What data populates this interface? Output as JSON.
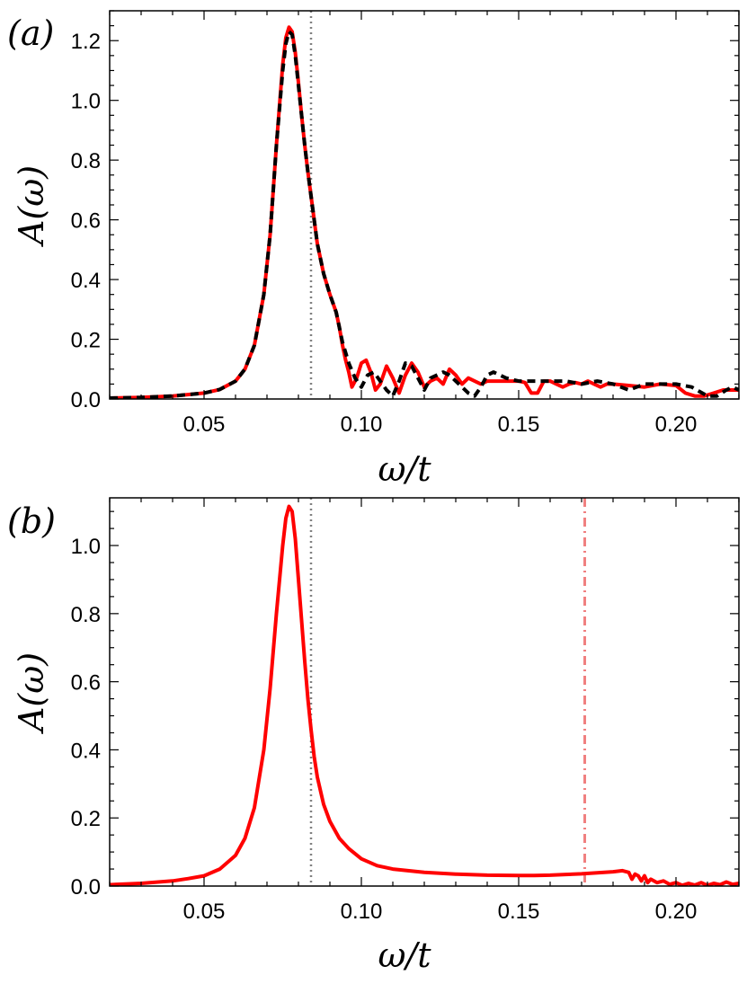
{
  "chart_data": [
    {
      "type": "line",
      "panel_label": "(a)",
      "xlabel": "ω/t",
      "ylabel": "A(ω)",
      "xlim": [
        0.02,
        0.22
      ],
      "ylim": [
        0.0,
        1.3
      ],
      "x_ticks": [
        0.05,
        0.1,
        0.15,
        0.2
      ],
      "x_tick_labels": [
        "0.05",
        "0.10",
        "0.15",
        "0.20"
      ],
      "y_ticks": [
        0.0,
        0.2,
        0.4,
        0.6,
        0.8,
        1.0,
        1.2
      ],
      "y_tick_labels": [
        "0.0",
        "0.2",
        "0.4",
        "0.6",
        "0.8",
        "1.0",
        "1.2"
      ],
      "vlines": [
        {
          "x": 0.084,
          "color": "#808080",
          "style": "dotted"
        }
      ],
      "series": [
        {
          "name": "red-solid",
          "color": "#ff0000",
          "style": "solid",
          "x": [
            0.02,
            0.03,
            0.04,
            0.05,
            0.055,
            0.06,
            0.063,
            0.066,
            0.069,
            0.071,
            0.073,
            0.075,
            0.076,
            0.077,
            0.078,
            0.079,
            0.08,
            0.081,
            0.082,
            0.083,
            0.084,
            0.085,
            0.086,
            0.088,
            0.09,
            0.092,
            0.093,
            0.094,
            0.095,
            0.096,
            0.097,
            0.0985,
            0.1,
            0.1015,
            0.103,
            0.1045,
            0.106,
            0.108,
            0.11,
            0.112,
            0.114,
            0.116,
            0.118,
            0.12,
            0.122,
            0.124,
            0.126,
            0.128,
            0.13,
            0.132,
            0.134,
            0.136,
            0.138,
            0.14,
            0.145,
            0.15,
            0.152,
            0.154,
            0.156,
            0.158,
            0.16,
            0.162,
            0.164,
            0.166,
            0.168,
            0.17,
            0.172,
            0.174,
            0.176,
            0.178,
            0.18,
            0.185,
            0.19,
            0.195,
            0.2,
            0.203,
            0.206,
            0.209,
            0.212,
            0.215,
            0.218,
            0.22
          ],
          "y": [
            0.003,
            0.005,
            0.01,
            0.02,
            0.032,
            0.06,
            0.1,
            0.18,
            0.35,
            0.55,
            0.85,
            1.12,
            1.21,
            1.245,
            1.23,
            1.16,
            1.06,
            0.95,
            0.85,
            0.76,
            0.68,
            0.6,
            0.52,
            0.42,
            0.35,
            0.29,
            0.24,
            0.18,
            0.13,
            0.09,
            0.04,
            0.07,
            0.12,
            0.13,
            0.09,
            0.03,
            0.05,
            0.11,
            0.07,
            0.02,
            0.08,
            0.12,
            0.09,
            0.04,
            0.06,
            0.07,
            0.05,
            0.1,
            0.08,
            0.05,
            0.07,
            0.06,
            0.05,
            0.06,
            0.06,
            0.06,
            0.055,
            0.02,
            0.02,
            0.06,
            0.06,
            0.05,
            0.04,
            0.05,
            0.055,
            0.05,
            0.06,
            0.05,
            0.04,
            0.05,
            0.05,
            0.045,
            0.04,
            0.05,
            0.045,
            0.02,
            0.01,
            0.01,
            0.02,
            0.03,
            0.03,
            0.03
          ]
        },
        {
          "name": "black-dashed",
          "color": "#000000",
          "style": "dashed",
          "x": [
            0.02,
            0.03,
            0.04,
            0.05,
            0.055,
            0.06,
            0.063,
            0.066,
            0.069,
            0.071,
            0.073,
            0.075,
            0.076,
            0.077,
            0.078,
            0.079,
            0.08,
            0.081,
            0.082,
            0.083,
            0.084,
            0.085,
            0.086,
            0.088,
            0.09,
            0.092,
            0.093,
            0.094,
            0.096,
            0.098,
            0.1,
            0.102,
            0.104,
            0.106,
            0.108,
            0.11,
            0.112,
            0.114,
            0.116,
            0.118,
            0.12,
            0.122,
            0.124,
            0.126,
            0.128,
            0.13,
            0.132,
            0.134,
            0.136,
            0.138,
            0.14,
            0.142,
            0.144,
            0.146,
            0.15,
            0.155,
            0.16,
            0.165,
            0.17,
            0.175,
            0.18,
            0.185,
            0.19,
            0.195,
            0.2,
            0.205,
            0.21,
            0.213,
            0.216,
            0.218,
            0.22
          ],
          "y": [
            0.003,
            0.005,
            0.01,
            0.02,
            0.032,
            0.06,
            0.1,
            0.18,
            0.35,
            0.55,
            0.85,
            1.1,
            1.19,
            1.23,
            1.22,
            1.15,
            1.05,
            0.95,
            0.85,
            0.76,
            0.68,
            0.6,
            0.52,
            0.42,
            0.35,
            0.29,
            0.24,
            0.19,
            0.12,
            0.07,
            0.04,
            0.08,
            0.09,
            0.06,
            0.03,
            0.01,
            0.06,
            0.12,
            0.11,
            0.07,
            0.03,
            0.07,
            0.08,
            0.09,
            0.08,
            0.06,
            0.04,
            0.02,
            0.01,
            0.04,
            0.08,
            0.09,
            0.08,
            0.07,
            0.06,
            0.06,
            0.06,
            0.06,
            0.05,
            0.06,
            0.05,
            0.03,
            0.05,
            0.05,
            0.05,
            0.04,
            0.01,
            0.01,
            0.03,
            0.04,
            0.03
          ]
        }
      ]
    },
    {
      "type": "line",
      "panel_label": "(b)",
      "xlabel": "ω/t",
      "ylabel": "A(ω)",
      "xlim": [
        0.02,
        0.22
      ],
      "ylim": [
        0.0,
        1.14
      ],
      "x_ticks": [
        0.05,
        0.1,
        0.15,
        0.2
      ],
      "x_tick_labels": [
        "0.05",
        "0.10",
        "0.15",
        "0.20"
      ],
      "y_ticks": [
        0.0,
        0.2,
        0.4,
        0.6,
        0.8,
        1.0
      ],
      "y_tick_labels": [
        "0.0",
        "0.2",
        "0.4",
        "0.6",
        "0.8",
        "1.0"
      ],
      "vlines": [
        {
          "x": 0.084,
          "color": "#808080",
          "style": "dotted"
        },
        {
          "x": 0.171,
          "color": "#f08080",
          "style": "dashdot"
        }
      ],
      "series": [
        {
          "name": "red-solid",
          "color": "#ff0000",
          "style": "solid",
          "x": [
            0.02,
            0.03,
            0.04,
            0.045,
            0.05,
            0.055,
            0.06,
            0.063,
            0.066,
            0.069,
            0.071,
            0.073,
            0.075,
            0.076,
            0.077,
            0.078,
            0.079,
            0.08,
            0.081,
            0.082,
            0.083,
            0.084,
            0.085,
            0.086,
            0.088,
            0.09,
            0.093,
            0.096,
            0.1,
            0.105,
            0.11,
            0.12,
            0.13,
            0.14,
            0.15,
            0.155,
            0.16,
            0.165,
            0.17,
            0.175,
            0.18,
            0.183,
            0.185,
            0.186,
            0.187,
            0.188,
            0.189,
            0.19,
            0.191,
            0.192,
            0.194,
            0.196,
            0.198,
            0.2,
            0.202,
            0.204,
            0.206,
            0.208,
            0.21,
            0.212,
            0.214,
            0.216,
            0.218,
            0.22
          ],
          "y": [
            0.004,
            0.008,
            0.015,
            0.022,
            0.03,
            0.05,
            0.09,
            0.14,
            0.23,
            0.4,
            0.58,
            0.8,
            1.0,
            1.08,
            1.115,
            1.1,
            1.02,
            0.9,
            0.78,
            0.66,
            0.55,
            0.46,
            0.38,
            0.32,
            0.24,
            0.19,
            0.14,
            0.11,
            0.08,
            0.06,
            0.05,
            0.04,
            0.035,
            0.032,
            0.031,
            0.031,
            0.032,
            0.034,
            0.036,
            0.039,
            0.042,
            0.045,
            0.04,
            0.02,
            0.035,
            0.03,
            0.015,
            0.03,
            0.01,
            0.02,
            0.01,
            0.015,
            0.005,
            0.01,
            0.002,
            0.008,
            0.003,
            0.01,
            0.002,
            0.008,
            0.004,
            0.012,
            0.005,
            0.008
          ]
        }
      ]
    }
  ]
}
